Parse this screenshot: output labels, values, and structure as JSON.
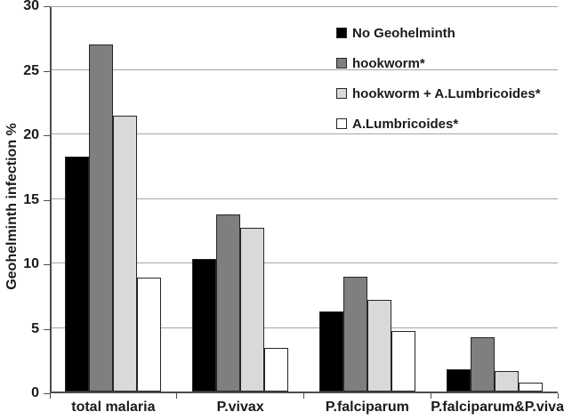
{
  "colors": {
    "gridline": "#a6a6a6",
    "axis": "#4d4d4d",
    "bar_border": "#262626",
    "text": "#1a1a1a",
    "background": "#ffffff"
  },
  "chart_data": {
    "type": "bar",
    "title": "",
    "xlabel": "",
    "ylabel": "Geohelminth infection %",
    "ylim": [
      0,
      30
    ],
    "yticks": [
      0,
      5,
      10,
      15,
      20,
      25,
      30
    ],
    "grid": true,
    "legend_position": "top-right",
    "categories": [
      "total malaria",
      "P.vivax",
      "P.falciparum",
      "P.falciparum&P.vivax"
    ],
    "series": [
      {
        "name": "No Geohelminth",
        "color": "#000000",
        "values": [
          18.2,
          10.3,
          6.2,
          1.7
        ]
      },
      {
        "name": "hookworm*",
        "color": "#7f7f7f",
        "values": [
          26.9,
          13.7,
          8.9,
          4.2
        ]
      },
      {
        "name": "hookworm + A.Lumbricoides*",
        "color": "#d9d9d9",
        "values": [
          21.4,
          12.7,
          7.1,
          1.6
        ]
      },
      {
        "name": "A.Lumbricoides*",
        "color": "#ffffff",
        "values": [
          8.8,
          3.4,
          4.7,
          0.7
        ]
      }
    ]
  }
}
